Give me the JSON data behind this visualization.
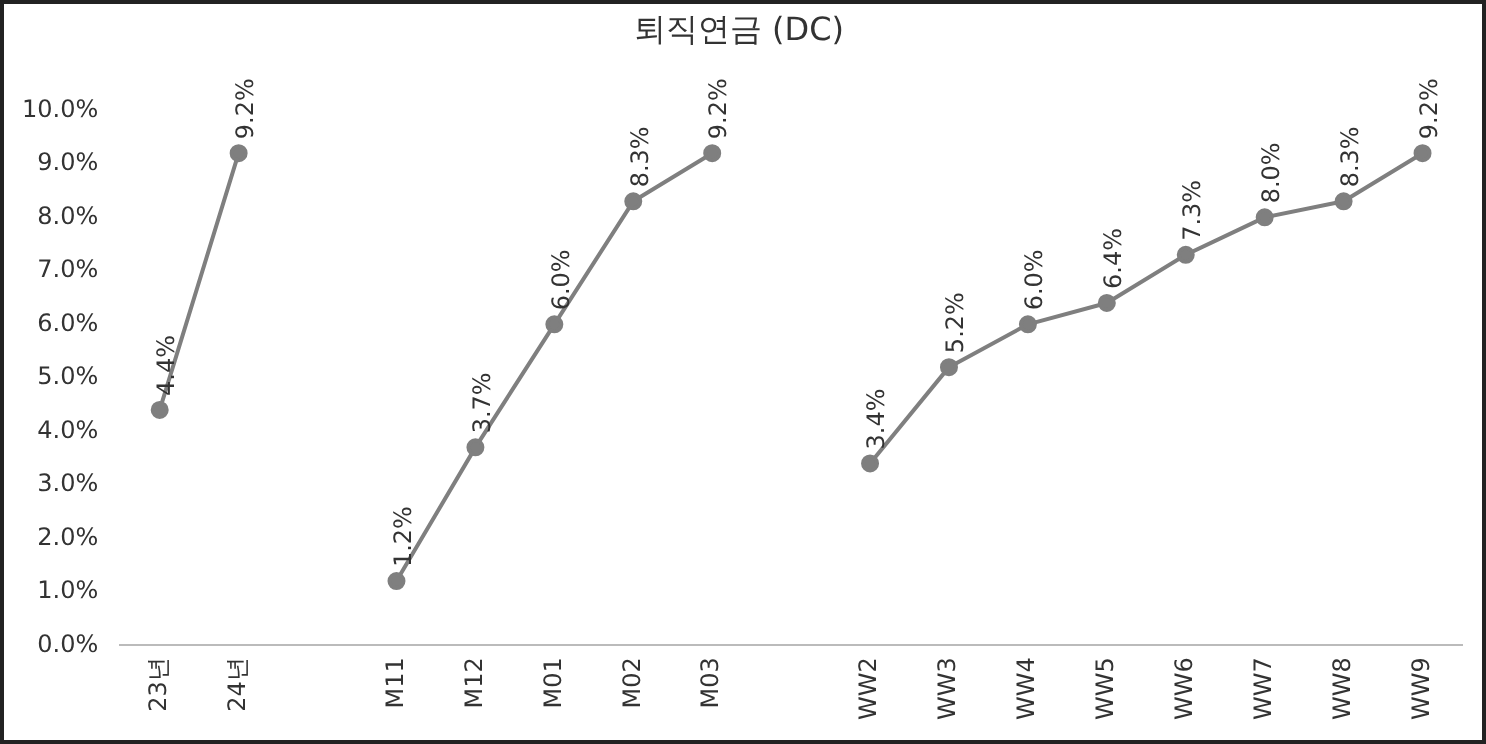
{
  "chart_data": {
    "type": "line",
    "title": "퇴직연금 (DC)",
    "categories": [
      "23년",
      "24년",
      null,
      "M11",
      "M12",
      "M01",
      "M02",
      "M03",
      null,
      "WW2",
      "WW3",
      "WW4",
      "WW5",
      "WW6",
      "WW7",
      "WW8",
      "WW9"
    ],
    "series": [
      {
        "color": "#7f7f7f",
        "values": [
          4.4,
          9.2,
          null,
          1.2,
          3.7,
          6.0,
          8.3,
          9.2,
          null,
          3.4,
          5.2,
          6.0,
          6.4,
          7.3,
          8.0,
          8.3,
          9.2
        ],
        "value_labels": [
          "4.4%",
          "9.2%",
          null,
          "1.2%",
          "3.7%",
          "6.0%",
          "8.3%",
          "9.2%",
          null,
          "3.4%",
          "5.2%",
          "6.0%",
          "6.4%",
          "7.3%",
          "8.0%",
          "8.3%",
          "9.2%"
        ]
      }
    ],
    "ylim": [
      0,
      10
    ],
    "yticks": [
      {
        "value": 0,
        "label": "0.0%"
      },
      {
        "value": 1,
        "label": "1.0%"
      },
      {
        "value": 2,
        "label": "2.0%"
      },
      {
        "value": 3,
        "label": "3.0%"
      },
      {
        "value": 4,
        "label": "4.0%"
      },
      {
        "value": 5,
        "label": "5.0%"
      },
      {
        "value": 6,
        "label": "6.0%"
      },
      {
        "value": 7,
        "label": "7.0%"
      },
      {
        "value": 8,
        "label": "8.0%"
      },
      {
        "value": 9,
        "label": "9.0%"
      },
      {
        "value": 10,
        "label": "10.0%"
      }
    ],
    "grid": false,
    "legend": false,
    "marker": "circle",
    "line_style": "solid"
  }
}
